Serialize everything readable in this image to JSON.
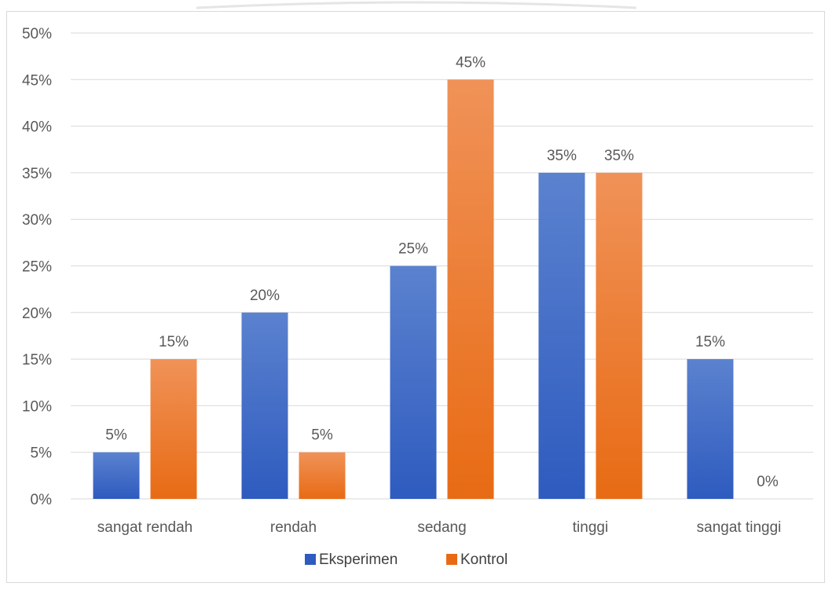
{
  "chart_data": {
    "type": "bar",
    "categories": [
      "sangat rendah",
      "rendah",
      "sedang",
      "tinggi",
      "sangat tinggi"
    ],
    "series": [
      {
        "name": "Eksperimen",
        "values": [
          5,
          20,
          25,
          35,
          15
        ],
        "color_top": "#5b82cf",
        "color_bottom": "#2e5bbf"
      },
      {
        "name": "Kontrol",
        "values": [
          15,
          5,
          45,
          35,
          0
        ],
        "color_top": "#f09258",
        "color_bottom": "#e86b14"
      }
    ],
    "value_labels": [
      [
        "5%",
        "20%",
        "25%",
        "35%",
        "15%"
      ],
      [
        "15%",
        "5%",
        "45%",
        "35%",
        "0%"
      ]
    ],
    "yticks": [
      0,
      5,
      10,
      15,
      20,
      25,
      30,
      35,
      40,
      45,
      50
    ],
    "ytick_labels": [
      "0%",
      "5%",
      "10%",
      "15%",
      "20%",
      "25%",
      "30%",
      "35%",
      "40%",
      "45%",
      "50%"
    ],
    "ylim": [
      0,
      50
    ],
    "title": "",
    "xlabel": "",
    "ylabel": "",
    "grid": true,
    "legend_position": "bottom",
    "colors": {
      "grid": "#d9d9d9",
      "text": "#595959"
    }
  }
}
